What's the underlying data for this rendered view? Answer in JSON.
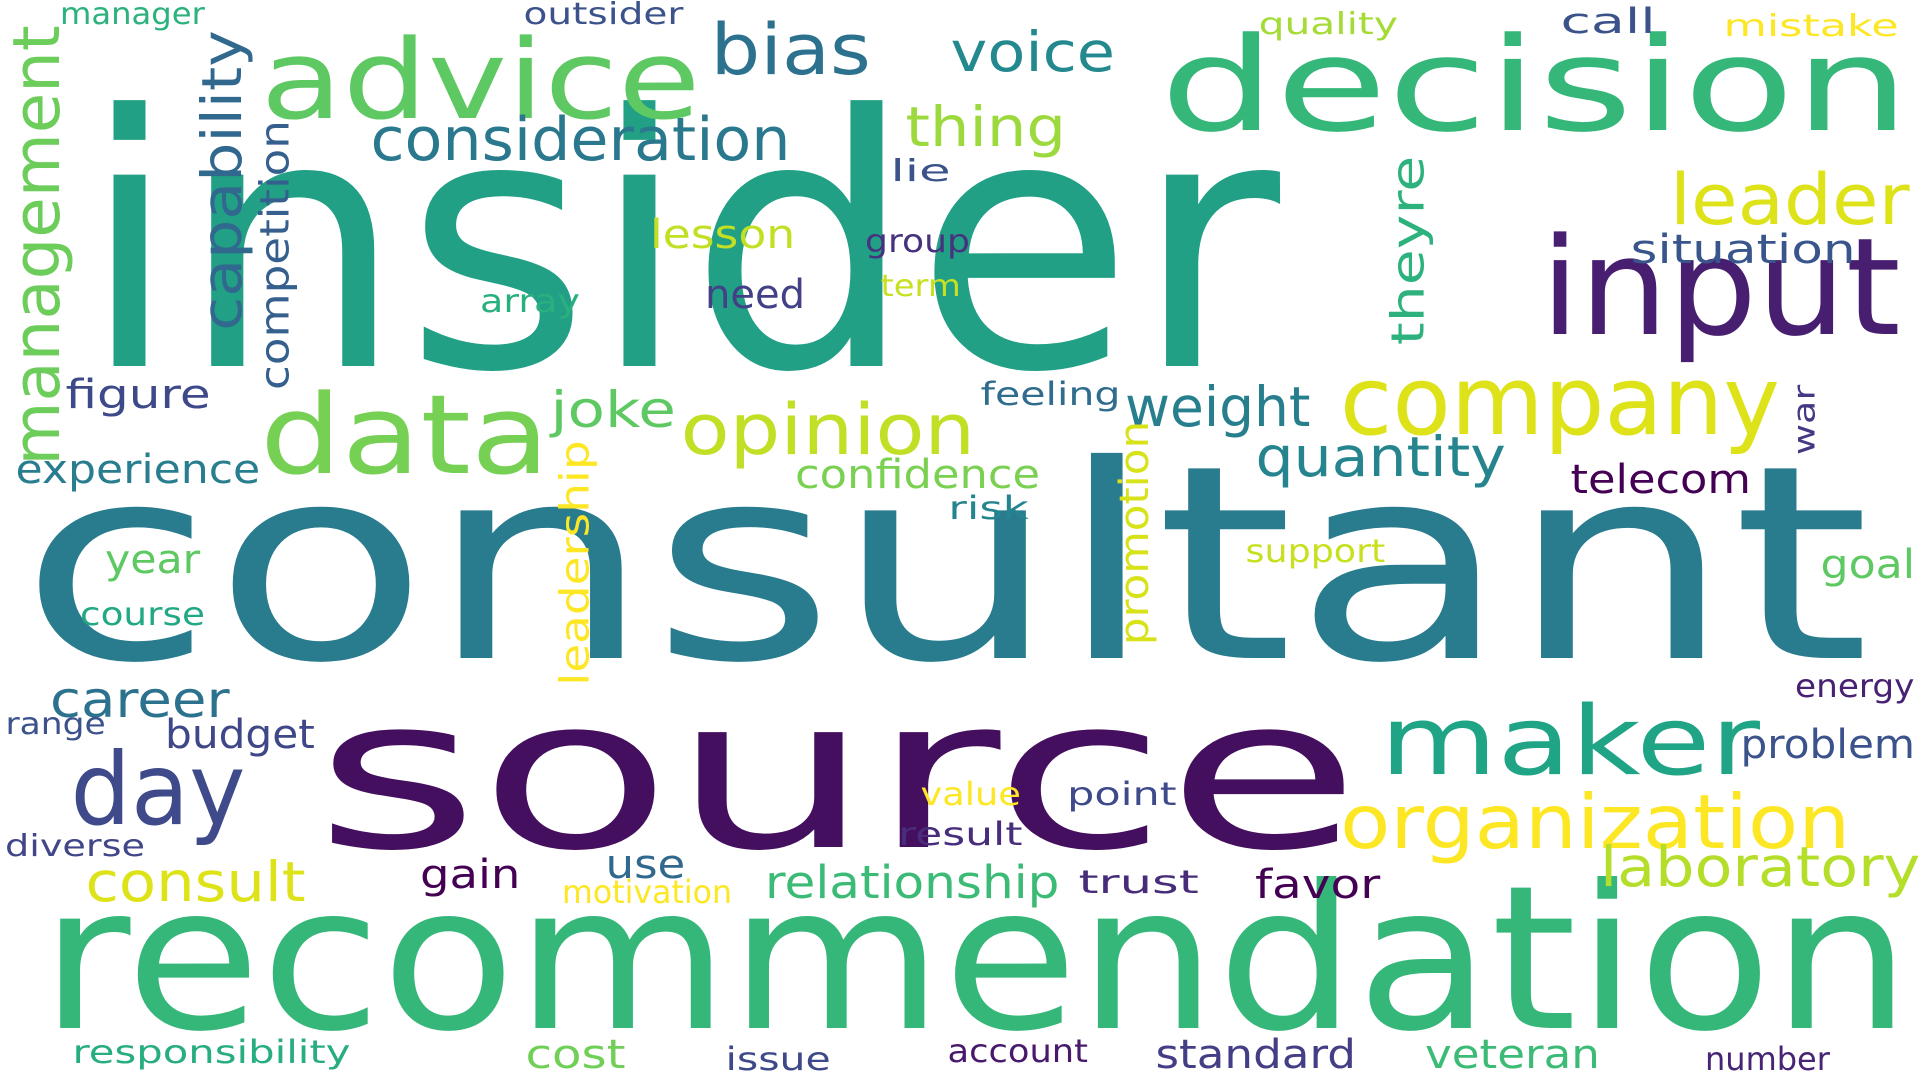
{
  "words": [
    {
      "text": "insider",
      "color": "#21a085",
      "rotated": false
    },
    {
      "text": "consultant",
      "color": "#297b8e",
      "rotated": false
    },
    {
      "text": "source",
      "color": "#440f5e",
      "rotated": false
    },
    {
      "text": "recommendation",
      "color": "#35b779",
      "rotated": false
    },
    {
      "text": "decision",
      "color": "#35b779",
      "rotated": false
    },
    {
      "text": "input",
      "color": "#481f70",
      "rotated": false
    },
    {
      "text": "company",
      "color": "#dde318",
      "rotated": false
    },
    {
      "text": "advice",
      "color": "#5ec962",
      "rotated": false
    },
    {
      "text": "data",
      "color": "#75d054",
      "rotated": false
    },
    {
      "text": "maker",
      "color": "#20a486",
      "rotated": false
    },
    {
      "text": "day",
      "color": "#3e4a89",
      "rotated": false
    },
    {
      "text": "organization",
      "color": "#fde725",
      "rotated": false
    },
    {
      "text": "leader",
      "color": "#dde318",
      "rotated": false
    },
    {
      "text": "bias",
      "color": "#2c728e",
      "rotated": false
    },
    {
      "text": "management",
      "color": "#6ccd5a",
      "rotated": true
    },
    {
      "text": "capability",
      "color": "#31688e",
      "rotated": true
    },
    {
      "text": "opinion",
      "color": "#c0df25",
      "rotated": false
    },
    {
      "text": "consideration",
      "color": "#2a788e",
      "rotated": false
    },
    {
      "text": "voice",
      "color": "#23898e",
      "rotated": false
    },
    {
      "text": "thing",
      "color": "#9bd93c",
      "rotated": false
    },
    {
      "text": "weight",
      "color": "#277f8e",
      "rotated": false
    },
    {
      "text": "quantity",
      "color": "#25848e",
      "rotated": false
    },
    {
      "text": "laboratory",
      "color": "#b5de2b",
      "rotated": false
    },
    {
      "text": "consult",
      "color": "#dde318",
      "rotated": false
    },
    {
      "text": "theyre",
      "color": "#2db27d",
      "rotated": true
    },
    {
      "text": "competition",
      "color": "#355f8d",
      "rotated": true
    },
    {
      "text": "career",
      "color": "#2c728e",
      "rotated": false
    },
    {
      "text": "joke",
      "color": "#5ec962",
      "rotated": false
    },
    {
      "text": "confidence",
      "color": "#7ad151",
      "rotated": false
    },
    {
      "text": "relationship",
      "color": "#3bbb75",
      "rotated": false
    },
    {
      "text": "leadership",
      "color": "#fde725",
      "rotated": true
    },
    {
      "text": "promotion",
      "color": "#d8e219",
      "rotated": true
    },
    {
      "text": "telecom",
      "color": "#440154",
      "rotated": false
    },
    {
      "text": "situation",
      "color": "#39568c",
      "rotated": false
    },
    {
      "text": "figure",
      "color": "#3e4989",
      "rotated": false
    },
    {
      "text": "experience",
      "color": "#287d8e",
      "rotated": false
    },
    {
      "text": "year",
      "color": "#5ec962",
      "rotated": false
    },
    {
      "text": "goal",
      "color": "#5ec962",
      "rotated": false
    },
    {
      "text": "need",
      "color": "#424086",
      "rotated": false
    },
    {
      "text": "lesson",
      "color": "#c2df23",
      "rotated": false
    },
    {
      "text": "budget",
      "color": "#3f4788",
      "rotated": false
    },
    {
      "text": "problem",
      "color": "#3b528b",
      "rotated": false
    },
    {
      "text": "standard",
      "color": "#433e85",
      "rotated": false
    },
    {
      "text": "veteran",
      "color": "#3bbb75",
      "rotated": false
    },
    {
      "text": "cost",
      "color": "#70cf57",
      "rotated": false
    },
    {
      "text": "favor",
      "color": "#440154",
      "rotated": false
    },
    {
      "text": "gain",
      "color": "#440154",
      "rotated": false
    },
    {
      "text": "use",
      "color": "#31688e",
      "rotated": false
    },
    {
      "text": "call",
      "color": "#3b528b",
      "rotated": false
    },
    {
      "text": "war",
      "color": "#443983",
      "rotated": true
    },
    {
      "text": "course",
      "color": "#22a884",
      "rotated": false
    },
    {
      "text": "array",
      "color": "#2ab07f",
      "rotated": false
    },
    {
      "text": "group",
      "color": "#46327e",
      "rotated": false
    },
    {
      "text": "term",
      "color": "#c8e020",
      "rotated": false
    },
    {
      "text": "lie",
      "color": "#3b528b",
      "rotated": false
    },
    {
      "text": "feeling",
      "color": "#2f6c8e",
      "rotated": false
    },
    {
      "text": "risk",
      "color": "#25858e",
      "rotated": false
    },
    {
      "text": "support",
      "color": "#c8e020",
      "rotated": false
    },
    {
      "text": "energy",
      "color": "#482173",
      "rotated": false
    },
    {
      "text": "range",
      "color": "#3b528b",
      "rotated": false
    },
    {
      "text": "diverse",
      "color": "#404688",
      "rotated": false
    },
    {
      "text": "value",
      "color": "#fde725",
      "rotated": false
    },
    {
      "text": "point",
      "color": "#3e4a89",
      "rotated": false
    },
    {
      "text": "result",
      "color": "#472d7b",
      "rotated": false
    },
    {
      "text": "motivation",
      "color": "#fde725",
      "rotated": false
    },
    {
      "text": "trust",
      "color": "#472c7a",
      "rotated": false
    },
    {
      "text": "account",
      "color": "#481a6c",
      "rotated": false
    },
    {
      "text": "issue",
      "color": "#3e4989",
      "rotated": false
    },
    {
      "text": "number",
      "color": "#482475",
      "rotated": false
    },
    {
      "text": "responsibility",
      "color": "#27ad81",
      "rotated": false
    },
    {
      "text": "manager",
      "color": "#2db27d",
      "rotated": false
    },
    {
      "text": "outsider",
      "color": "#3b528b",
      "rotated": false
    },
    {
      "text": "quality",
      "color": "#a5db36",
      "rotated": false
    },
    {
      "text": "mistake",
      "color": "#fde725",
      "rotated": false
    }
  ]
}
